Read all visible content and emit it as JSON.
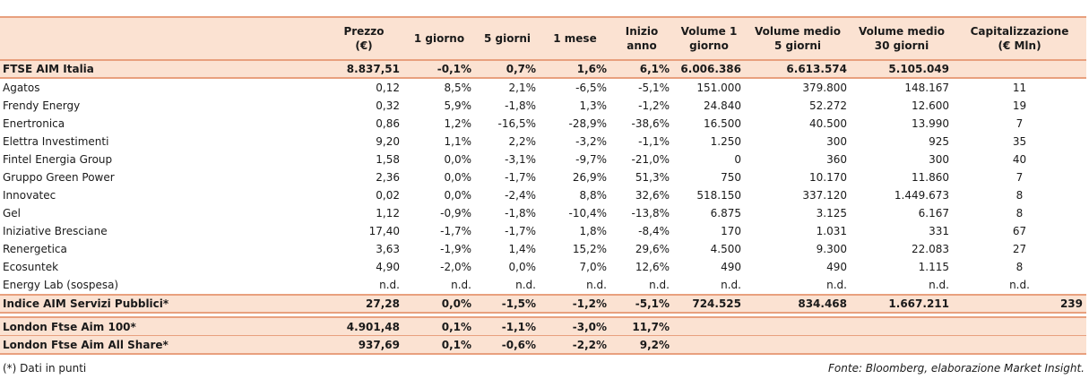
{
  "headers": [
    {
      "line1": "",
      "line2": ""
    },
    {
      "line1": "Prezzo",
      "line2": "(€)"
    },
    {
      "line1": "1 giorno",
      "line2": ""
    },
    {
      "line1": "5 giorni",
      "line2": ""
    },
    {
      "line1": "1 mese",
      "line2": ""
    },
    {
      "line1": "Inizio anno",
      "line2": ""
    },
    {
      "line1": "Volume 1",
      "line2": "giorno"
    },
    {
      "line1": "Volume medio",
      "line2": "5 giorni"
    },
    {
      "line1": "Volume medio",
      "line2": "30 giorni"
    },
    {
      "line1": "Capitalizzazione",
      "line2": "(€ Mln)"
    }
  ],
  "ftse": {
    "name": "FTSE AIM Italia",
    "prezzo": "8.837,51",
    "g1": "-0,1%",
    "g5": "0,7%",
    "m1": "1,6%",
    "ia": "6,1%",
    "v1": "6.006.386",
    "v5": "6.613.574",
    "v30": "5.105.049",
    "cap": ""
  },
  "stocks": [
    {
      "name": "Agatos",
      "prezzo": "0,12",
      "g1": "8,5%",
      "g5": "2,1%",
      "m1": "-6,5%",
      "ia": "-5,1%",
      "v1": "151.000",
      "v5": "379.800",
      "v30": "148.167",
      "cap": "11"
    },
    {
      "name": "Frendy Energy",
      "prezzo": "0,32",
      "g1": "5,9%",
      "g5": "-1,8%",
      "m1": "1,3%",
      "ia": "-1,2%",
      "v1": "24.840",
      "v5": "52.272",
      "v30": "12.600",
      "cap": "19"
    },
    {
      "name": "Enertronica",
      "prezzo": "0,86",
      "g1": "1,2%",
      "g5": "-16,5%",
      "m1": "-28,9%",
      "ia": "-38,6%",
      "v1": "16.500",
      "v5": "40.500",
      "v30": "13.990",
      "cap": "7"
    },
    {
      "name": "Elettra Investimenti",
      "prezzo": "9,20",
      "g1": "1,1%",
      "g5": "2,2%",
      "m1": "-3,2%",
      "ia": "-1,1%",
      "v1": "1.250",
      "v5": "300",
      "v30": "925",
      "cap": "35"
    },
    {
      "name": "Fintel Energia Group",
      "prezzo": "1,58",
      "g1": "0,0%",
      "g5": "-3,1%",
      "m1": "-9,7%",
      "ia": "-21,0%",
      "v1": "0",
      "v5": "360",
      "v30": "300",
      "cap": "40"
    },
    {
      "name": "Gruppo Green Power",
      "prezzo": "2,36",
      "g1": "0,0%",
      "g5": "-1,7%",
      "m1": "26,9%",
      "ia": "51,3%",
      "v1": "750",
      "v5": "10.170",
      "v30": "11.860",
      "cap": "7"
    },
    {
      "name": "Innovatec",
      "prezzo": "0,02",
      "g1": "0,0%",
      "g5": "-2,4%",
      "m1": "8,8%",
      "ia": "32,6%",
      "v1": "518.150",
      "v5": "337.120",
      "v30": "1.449.673",
      "cap": "8"
    },
    {
      "name": "Gel",
      "prezzo": "1,12",
      "g1": "-0,9%",
      "g5": "-1,8%",
      "m1": "-10,4%",
      "ia": "-13,8%",
      "v1": "6.875",
      "v5": "3.125",
      "v30": "6.167",
      "cap": "8"
    },
    {
      "name": "Iniziative Bresciane",
      "prezzo": "17,40",
      "g1": "-1,7%",
      "g5": "-1,7%",
      "m1": "1,8%",
      "ia": "-8,4%",
      "v1": "170",
      "v5": "1.031",
      "v30": "331",
      "cap": "67"
    },
    {
      "name": "Renergetica",
      "prezzo": "3,63",
      "g1": "-1,9%",
      "g5": "1,4%",
      "m1": "15,2%",
      "ia": "29,6%",
      "v1": "4.500",
      "v5": "9.300",
      "v30": "22.083",
      "cap": "27"
    },
    {
      "name": "Ecosuntek",
      "prezzo": "4,90",
      "g1": "-2,0%",
      "g5": "0,0%",
      "m1": "7,0%",
      "ia": "12,6%",
      "v1": "490",
      "v5": "490",
      "v30": "1.115",
      "cap": "8"
    },
    {
      "name": "Energy Lab (sospesa)",
      "prezzo": "n.d.",
      "g1": "n.d.",
      "g5": "n.d.",
      "m1": "n.d.",
      "ia": "n.d.",
      "v1": "n.d.",
      "v5": "n.d.",
      "v30": "n.d.",
      "cap": "n.d."
    }
  ],
  "indice": {
    "name": "Indice AIM Servizi Pubblici*",
    "prezzo": "27,28",
    "g1": "0,0%",
    "g5": "-1,5%",
    "m1": "-1,2%",
    "ia": "-5,1%",
    "v1": "724.525",
    "v5": "834.468",
    "v30": "1.667.211",
    "cap": "239"
  },
  "london": [
    {
      "name": "London Ftse Aim 100*",
      "prezzo": "4.901,48",
      "g1": "0,1%",
      "g5": "-1,1%",
      "m1": "-3,0%",
      "ia": "11,7%",
      "v1": "",
      "v5": "",
      "v30": "",
      "cap": ""
    },
    {
      "name": "London Ftse Aim All Share*",
      "prezzo": "937,69",
      "g1": "0,1%",
      "g5": "-0,6%",
      "m1": "-2,2%",
      "ia": "9,2%",
      "v1": "",
      "v5": "",
      "v30": "",
      "cap": ""
    }
  ],
  "footnote": "(*) Dati in punti",
  "source": "Fonte: Bloomberg, elaborazione Market Insight."
}
